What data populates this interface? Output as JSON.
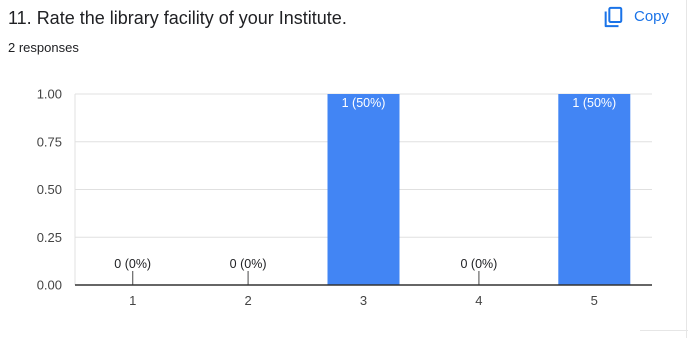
{
  "question": {
    "title": "11. Rate the library facility of your Institute.",
    "responses": "2 responses"
  },
  "toolbar": {
    "copy_label": "Copy",
    "copy_icon": "copy-icon"
  },
  "colors": {
    "bar": "#4285f4",
    "accent": "#1a73e8",
    "text": "#202124",
    "gridline": "#e0e0e0",
    "axis": "#333333"
  },
  "chart_data": {
    "type": "bar",
    "categories": [
      "1",
      "2",
      "3",
      "4",
      "5"
    ],
    "values": [
      0,
      0,
      1,
      0,
      1
    ],
    "data_labels": [
      "0 (0%)",
      "0 (0%)",
      "1 (50%)",
      "0 (0%)",
      "1 (50%)"
    ],
    "ylim": [
      0,
      1
    ],
    "yticks": [
      "0.00",
      "0.25",
      "0.50",
      "0.75",
      "1.00"
    ],
    "grid": true,
    "legend": "none",
    "title": "",
    "xlabel": "",
    "ylabel": ""
  }
}
